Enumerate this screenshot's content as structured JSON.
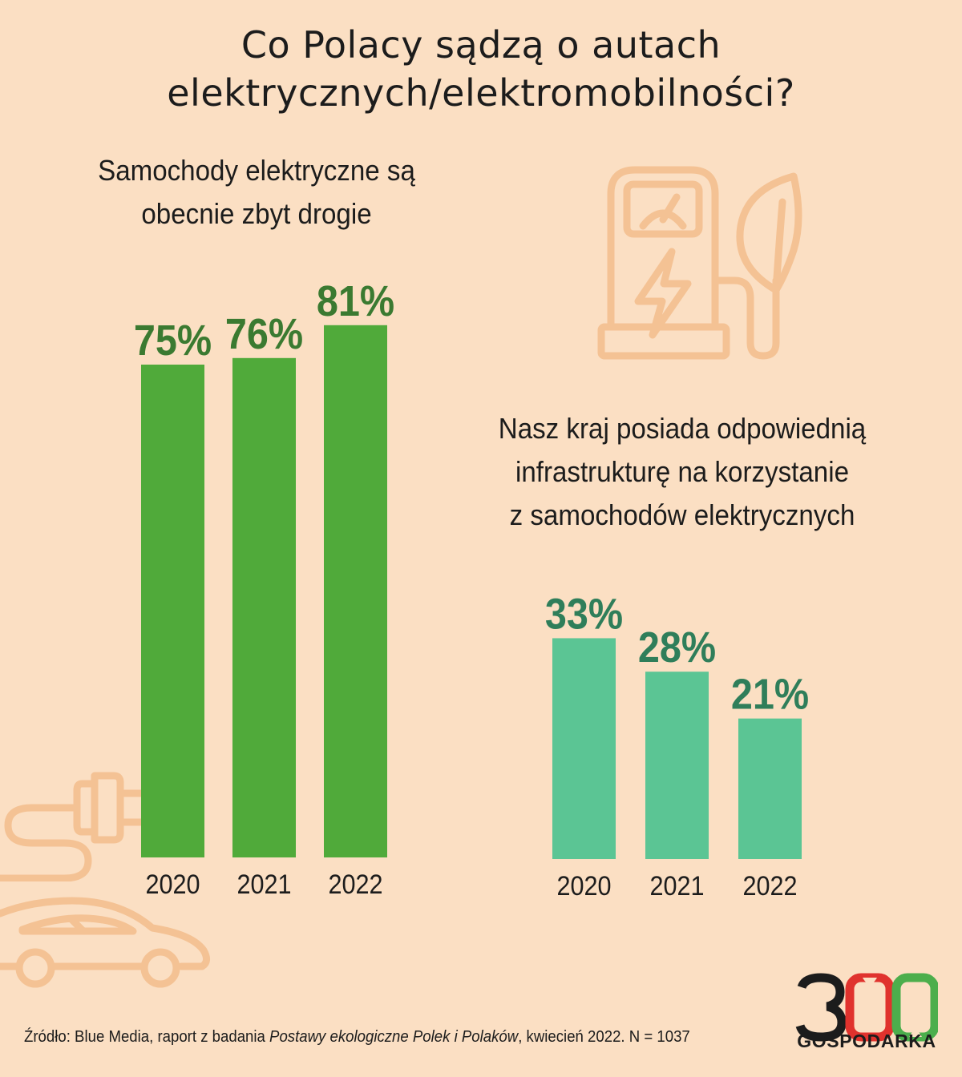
{
  "title": {
    "line1": "Co Polacy sądzą o autach",
    "line2": "elektrycznych/elektromobilności?"
  },
  "colors": {
    "background": "#fbdfc3",
    "bar_dark_green": "#50aa3a",
    "bar_light_green": "#5bc594",
    "label_dark_green": "#3b7a31",
    "label_teal_green": "#2f7e5a",
    "icon_outline": "#f4c294",
    "logo_red": "#e0322d",
    "logo_green": "#4cae4c"
  },
  "chart_data": [
    {
      "type": "bar",
      "title_lines": [
        "Samochody elektryczne są",
        "obecnie zbyt drogie"
      ],
      "categories": [
        "2020",
        "2021",
        "2022"
      ],
      "values": [
        75,
        76,
        81
      ],
      "value_labels": [
        "75%",
        "76%",
        "81%"
      ],
      "unit": "%",
      "grid": false,
      "legend": "none"
    },
    {
      "type": "bar",
      "title_lines": [
        "Nasz kraj posiada odpowiednią",
        "infrastrukturę na korzystanie",
        "z samochodów elektrycznych"
      ],
      "categories": [
        "2020",
        "2021",
        "2022"
      ],
      "values": [
        33,
        28,
        21
      ],
      "value_labels": [
        "33%",
        "28%",
        "21%"
      ],
      "unit": "%",
      "grid": false,
      "legend": "none"
    }
  ],
  "source": {
    "prefix": "Źródło: Blue Media, raport z badania ",
    "italic": "Postawy ekologiczne Polek i Polaków",
    "suffix": ", kwiecień 2022. N = 1037"
  },
  "logo": {
    "number": "300",
    "word": "GOSPODARKA"
  },
  "icons": [
    "charging-station-icon",
    "leaf-icon",
    "plug-icon",
    "car-icon"
  ]
}
